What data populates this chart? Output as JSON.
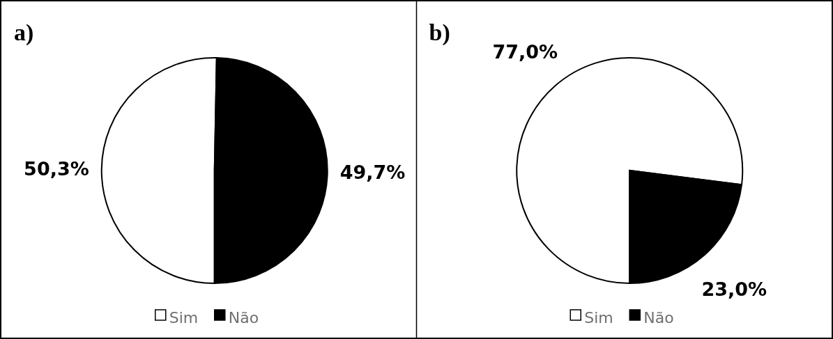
{
  "chart_data": [
    {
      "type": "pie",
      "title": "a)",
      "categories": [
        "Sim",
        "Não"
      ],
      "values": [
        50.3,
        49.7
      ],
      "colors": [
        "#ffffff",
        "#000000"
      ],
      "value_labels": [
        "50,3%",
        "49,7%"
      ],
      "legend": "bottom"
    },
    {
      "type": "pie",
      "title": "b)",
      "categories": [
        "Sim",
        "Não"
      ],
      "values": [
        77.0,
        23.0
      ],
      "colors": [
        "#ffffff",
        "#000000"
      ],
      "value_labels": [
        "77,0%",
        "23,0%"
      ],
      "legend": "bottom"
    }
  ]
}
